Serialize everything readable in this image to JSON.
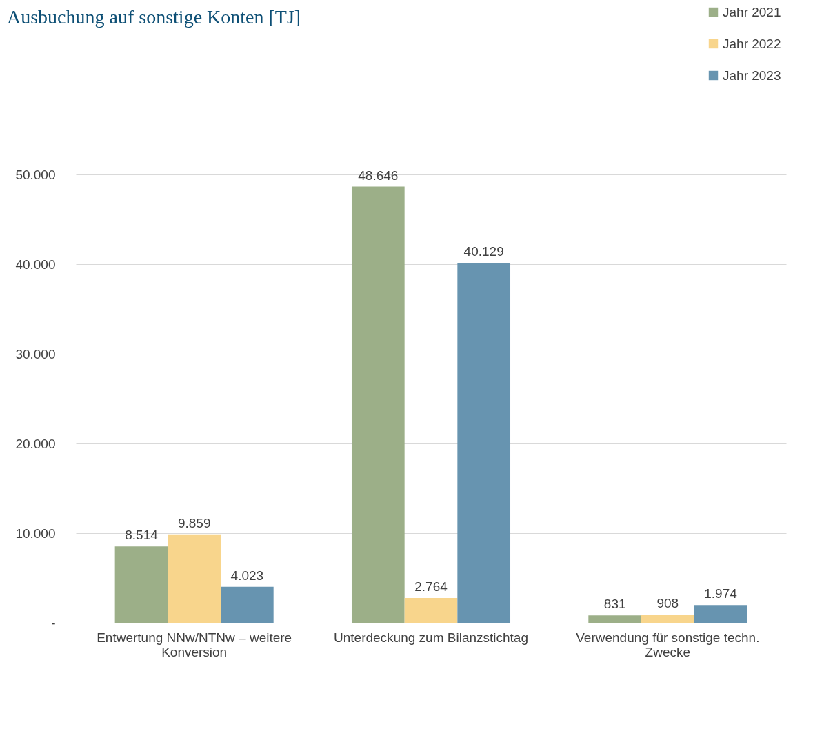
{
  "chart_data": {
    "type": "bar",
    "title": "Ausbuchung auf sonstige Konten [TJ]",
    "categories": [
      "Entwertung NNw/NTNw – weitere Konversion",
      "Unterdeckung zum Bilanzstichtag",
      "Verwendung für sonstige techn. Zwecke"
    ],
    "series": [
      {
        "name": "Jahr 2021",
        "color": "#9caf88",
        "values": [
          8514,
          48646,
          831
        ],
        "value_labels": [
          "8.514",
          "48.646",
          "831"
        ]
      },
      {
        "name": "Jahr 2022",
        "color": "#f8d58c",
        "values": [
          9859,
          2764,
          908
        ],
        "value_labels": [
          "9.859",
          "2.764",
          "908"
        ]
      },
      {
        "name": "Jahr 2023",
        "color": "#6794b0",
        "values": [
          4023,
          40129,
          1974
        ],
        "value_labels": [
          "4.023",
          "40.129",
          "1.974"
        ]
      }
    ],
    "ylim": [
      0,
      50000
    ],
    "yticks": [
      {
        "value": 0,
        "label": "-"
      },
      {
        "value": 10000,
        "label": "10.000"
      },
      {
        "value": 20000,
        "label": "20.000"
      },
      {
        "value": 30000,
        "label": "30.000"
      },
      {
        "value": 40000,
        "label": "40.000"
      },
      {
        "value": 50000,
        "label": "50.000"
      }
    ],
    "grid": "y",
    "legend": "top right"
  }
}
